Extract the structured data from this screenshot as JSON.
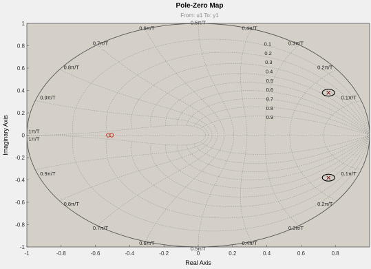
{
  "chart_data": {
    "type": "scatter",
    "title": "Pole-Zero Map",
    "subtitle": "From: u1  To: y1",
    "xlabel": "Real Axis",
    "ylabel": "Imaginary Axis",
    "xlim": [
      -1,
      1
    ],
    "ylim": [
      -1,
      1
    ],
    "xticks": [
      "-1",
      "-0.8",
      "-0.6",
      "-0.4",
      "-0.2",
      "0",
      "0.2",
      "0.4",
      "0.6",
      "0.8"
    ],
    "yticks": [
      "1",
      "0.8",
      "0.6",
      "0.4",
      "0.2",
      "0",
      "-0.2",
      "-0.4",
      "-0.6",
      "-0.8",
      "-1"
    ],
    "grid": true,
    "zeta_labels": [
      "0.1",
      "0.2",
      "0.3",
      "0.4",
      "0.5",
      "0.6",
      "0.7",
      "0.8",
      "0.9"
    ],
    "wn_labels_upper": [
      "1π/T",
      "0.9π/T",
      "0.8π/T",
      "0.7π/T",
      "0.6π/T",
      "0.5π/T",
      "0.4π/T",
      "0.3π/T",
      "0.2π/T",
      "0.1π/T"
    ],
    "wn_labels_lower": [
      "1π/T",
      "0.9π/T",
      "0.8π/T",
      "0.7π/T",
      "0.6π/T",
      "0.5π/T",
      "0.4π/T",
      "0.3π/T",
      "0.2π/T",
      "0.1π/T"
    ],
    "poles": [
      {
        "x": 0.76,
        "y": 0.38
      },
      {
        "x": 0.76,
        "y": -0.38
      }
    ],
    "zeros": [
      {
        "x": -0.525,
        "y": 0
      },
      {
        "x": -0.505,
        "y": 0
      }
    ],
    "colors": {
      "axes_bg": "#d4d0c8",
      "figure_bg": "#f0f0f0",
      "grid": "#9a9a9a",
      "unit_circle": "#555555",
      "pole_marker": "#7a2020",
      "zero_marker": "#c0392b",
      "highlight": "#000000"
    }
  }
}
